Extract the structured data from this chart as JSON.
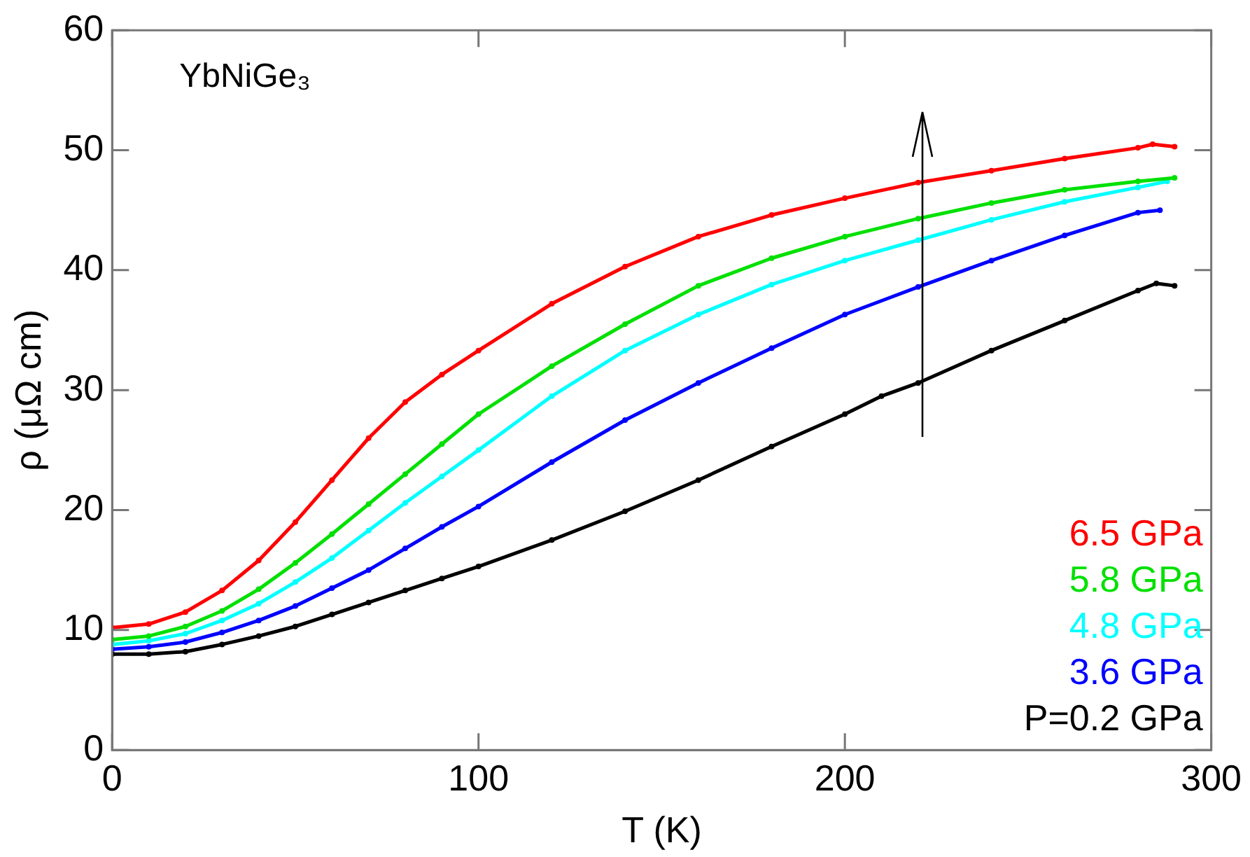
{
  "chart_data": {
    "type": "line",
    "xlabel": "T (K)",
    "ylabel": "ρ (μΩ cm)",
    "annotations": [
      "YbNiGe₃"
    ],
    "xlim": [
      0,
      300
    ],
    "xticks": [
      0,
      100,
      200,
      300
    ],
    "ylim": [
      0,
      60
    ],
    "yticks": [
      0,
      10,
      20,
      30,
      40,
      50,
      60
    ],
    "grid": false,
    "legend": "bottom right",
    "marker": "circle",
    "series": [
      {
        "name": "6.5 GPa",
        "color": "#ff0000",
        "x": [
          0,
          10,
          20,
          30,
          40,
          50,
          60,
          70,
          80,
          90,
          100,
          120,
          140,
          160,
          180,
          200,
          220,
          240,
          260,
          280,
          284,
          290
        ],
        "values": [
          10.2,
          10.5,
          11.5,
          13.3,
          15.8,
          19,
          22.5,
          26,
          29,
          31.3,
          33.3,
          37.2,
          40.3,
          42.8,
          44.6,
          46,
          47.3,
          48.3,
          49.3,
          50.2,
          50.5,
          50.3
        ]
      },
      {
        "name": "5.8 GPa",
        "color": "#00e000",
        "x": [
          0,
          10,
          20,
          30,
          40,
          50,
          60,
          70,
          80,
          90,
          100,
          120,
          140,
          160,
          180,
          200,
          220,
          240,
          260,
          280,
          290
        ],
        "values": [
          9.2,
          9.5,
          10.3,
          11.6,
          13.4,
          15.6,
          18,
          20.5,
          23,
          25.5,
          28,
          32,
          35.5,
          38.7,
          41,
          42.8,
          44.3,
          45.6,
          46.7,
          47.4,
          47.7
        ]
      },
      {
        "name": "4.8 GPa",
        "color": "#00ffff",
        "x": [
          0,
          10,
          20,
          30,
          40,
          50,
          60,
          70,
          80,
          90,
          100,
          120,
          140,
          160,
          180,
          200,
          220,
          240,
          260,
          280,
          288
        ],
        "values": [
          8.8,
          9.1,
          9.7,
          10.8,
          12.2,
          14,
          16,
          18.3,
          20.6,
          22.8,
          25,
          29.5,
          33.3,
          36.3,
          38.8,
          40.8,
          42.5,
          44.2,
          45.7,
          46.9,
          47.4
        ]
      },
      {
        "name": "3.6 GPa",
        "color": "#0000ff",
        "x": [
          0,
          10,
          20,
          30,
          40,
          50,
          60,
          70,
          80,
          90,
          100,
          120,
          140,
          160,
          180,
          200,
          220,
          240,
          260,
          280,
          286
        ],
        "values": [
          8.4,
          8.6,
          9,
          9.8,
          10.8,
          12,
          13.5,
          15,
          16.8,
          18.6,
          20.3,
          24,
          27.5,
          30.6,
          33.5,
          36.3,
          38.6,
          40.8,
          42.9,
          44.8,
          45
        ]
      },
      {
        "name": "P=0.2 GPa",
        "color": "#000000",
        "x": [
          0,
          10,
          20,
          30,
          40,
          50,
          60,
          70,
          80,
          90,
          100,
          120,
          140,
          160,
          180,
          200,
          210,
          220,
          240,
          260,
          280,
          285,
          290
        ],
        "values": [
          8,
          8,
          8.2,
          8.8,
          9.5,
          10.3,
          11.3,
          12.3,
          13.3,
          14.3,
          15.3,
          17.5,
          19.9,
          22.5,
          25.3,
          28,
          29.5,
          30.6,
          33.3,
          35.8,
          38.3,
          38.9,
          38.7
        ]
      }
    ]
  }
}
